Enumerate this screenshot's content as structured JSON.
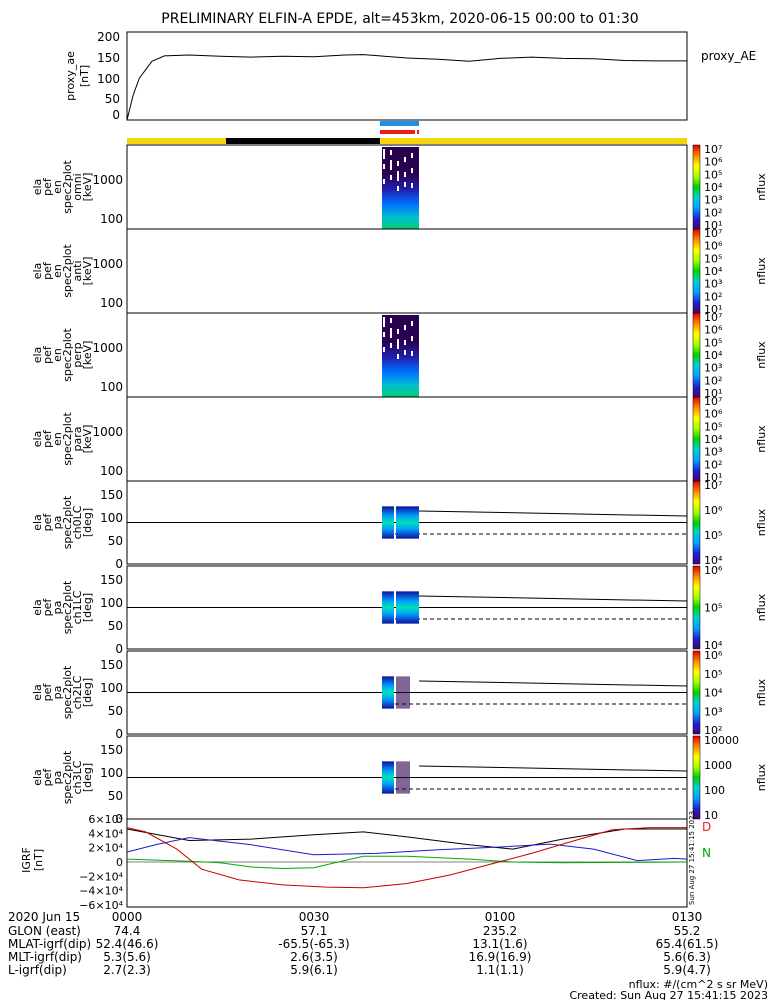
{
  "title": "PRELIMINARY ELFIN-A EPDE, alt=453km, 2020-06-15 00:00 to 01:30",
  "colors": {
    "background": "#ffffff",
    "sector_bar": "#f5d60a",
    "sector_dark": "#000000",
    "fgm_blue": "#1f8ee8",
    "fgm_red": "#e8201a",
    "bx": "#000000",
    "by": "#1a1acc",
    "bz": "#00aa00",
    "bmag": "#cc0000"
  },
  "chart_data": [
    {
      "type": "line",
      "id": "proxy_ae",
      "ylabel": [
        "proxy_ae",
        "[nT]"
      ],
      "legend": "proxy_AE",
      "ylim": [
        0,
        210
      ],
      "yticks": [
        "0",
        "50",
        "100",
        "150",
        "200"
      ],
      "series": [
        {
          "name": "proxy_AE",
          "x": [
            0,
            1,
            2,
            4,
            6,
            10,
            15,
            20,
            25,
            30,
            35,
            38,
            45,
            50,
            55,
            60,
            65,
            70,
            75,
            80,
            85,
            90
          ],
          "values": [
            0,
            60,
            100,
            140,
            153,
            155,
            152,
            150,
            152,
            151,
            155,
            156,
            148,
            145,
            140,
            147,
            150,
            147,
            146,
            142,
            141,
            141
          ]
        }
      ]
    },
    {
      "type": "heatmap",
      "id": "spec_omni",
      "ylabel": [
        "ela",
        "pef",
        "en",
        "spec2plot",
        "omni",
        "[keV]"
      ],
      "yticks": [
        "100",
        "1000"
      ],
      "colorbar": {
        "ticks": [
          "10¹",
          "10²",
          "10³",
          "10⁴",
          "10⁵",
          "10⁶",
          "10⁷"
        ],
        "label": "nflux"
      }
    },
    {
      "type": "heatmap",
      "id": "spec_anti",
      "ylabel": [
        "ela",
        "pef",
        "en",
        "spec2plot",
        "anti",
        "[keV]"
      ],
      "yticks": [
        "100",
        "1000"
      ],
      "colorbar": {
        "ticks": [
          "10¹",
          "10²",
          "10³",
          "10⁴",
          "10⁵",
          "10⁶",
          "10⁷"
        ],
        "label": "nflux"
      }
    },
    {
      "type": "heatmap",
      "id": "spec_perp",
      "ylabel": [
        "ela",
        "pef",
        "en",
        "spec2plot",
        "perp",
        "[keV]"
      ],
      "yticks": [
        "100",
        "1000"
      ],
      "colorbar": {
        "ticks": [
          "10¹",
          "10²",
          "10³",
          "10⁴",
          "10⁵",
          "10⁶",
          "10⁷"
        ],
        "label": "nflux"
      }
    },
    {
      "type": "heatmap",
      "id": "spec_para",
      "ylabel": [
        "ela",
        "pef",
        "en",
        "spec2plot",
        "para",
        "[keV]"
      ],
      "yticks": [
        "100",
        "1000"
      ],
      "colorbar": {
        "ticks": [
          "10¹",
          "10²",
          "10³",
          "10⁴",
          "10⁵",
          "10⁶",
          "10⁷"
        ],
        "label": "nflux"
      }
    },
    {
      "type": "heatmap",
      "id": "pa_ch0",
      "ylabel": [
        "ela",
        "pef",
        "pa",
        "spec2plot",
        "ch0LC",
        "[deg]"
      ],
      "yticks": [
        "0",
        "50",
        "100",
        "150"
      ],
      "colorbar": {
        "ticks": [
          "10⁴",
          "10⁵",
          "10⁶",
          "10⁷"
        ],
        "label": "nflux"
      }
    },
    {
      "type": "heatmap",
      "id": "pa_ch1",
      "ylabel": [
        "ela",
        "pef",
        "pa",
        "spec2plot",
        "ch1LC",
        "[deg]"
      ],
      "yticks": [
        "0",
        "50",
        "100",
        "150"
      ],
      "colorbar": {
        "ticks": [
          "10⁴",
          "10⁵",
          "10⁶"
        ],
        "label": "nflux"
      }
    },
    {
      "type": "heatmap",
      "id": "pa_ch2",
      "ylabel": [
        "ela",
        "pef",
        "pa",
        "spec2plot",
        "ch2LC",
        "[deg]"
      ],
      "yticks": [
        "0",
        "50",
        "100",
        "150"
      ],
      "colorbar": {
        "ticks": [
          "10²",
          "10³",
          "10⁴",
          "10⁵",
          "10⁶"
        ],
        "label": "nflux"
      }
    },
    {
      "type": "heatmap",
      "id": "pa_ch3",
      "ylabel": [
        "ela",
        "pef",
        "pa",
        "spec2plot",
        "ch3LC",
        "[deg]"
      ],
      "yticks": [
        "0",
        "50",
        "100",
        "150"
      ],
      "colorbar": {
        "ticks": [
          "10",
          "100",
          "1000",
          "10000"
        ],
        "label": "nflux"
      }
    },
    {
      "type": "line",
      "id": "igrf",
      "ylabel": [
        "IGRF",
        "[nT]"
      ],
      "ylim": [
        -60000,
        60000
      ],
      "yticks": [
        "−6×10⁴",
        "−4×10⁴",
        "−2×10⁴",
        "0",
        "2×10⁴",
        "4×10⁴",
        "6×10⁴"
      ],
      "legend_marks": [
        "D",
        "N"
      ],
      "series": [
        {
          "x": [
            0,
            5,
            10,
            20,
            30,
            38,
            45,
            55,
            62,
            70,
            80,
            90
          ],
          "values": [
            46000,
            38000,
            30000,
            32000,
            38000,
            42000,
            35000,
            24000,
            18000,
            32000,
            46000,
            46000
          ]
        },
        {
          "x": [
            0,
            5,
            10,
            20,
            30,
            40,
            50,
            60,
            68,
            75,
            82,
            88,
            90
          ],
          "values": [
            14000,
            25000,
            34000,
            24000,
            10000,
            12000,
            17000,
            21000,
            25000,
            18000,
            2000,
            5000,
            4000
          ]
        },
        {
          "x": [
            0,
            10,
            15,
            20,
            25,
            30,
            33,
            38,
            45,
            55,
            62,
            70,
            80,
            90
          ],
          "values": [
            4000,
            1000,
            -1000,
            -7000,
            -9000,
            -8000,
            -2000,
            8000,
            8000,
            4000,
            0,
            -1000,
            -500,
            0
          ]
        },
        {
          "x": [
            0,
            3,
            8,
            12,
            18,
            25,
            32,
            38,
            45,
            52,
            58,
            65,
            72,
            78,
            84,
            90
          ],
          "values": [
            48000,
            42000,
            18000,
            -10000,
            -25000,
            -32000,
            -35000,
            -36000,
            -30000,
            -18000,
            -4000,
            12000,
            30000,
            45000,
            48000,
            48000
          ]
        }
      ]
    }
  ],
  "time_axis": {
    "ticks": [
      "0000",
      "0030",
      "0100",
      "0130"
    ],
    "date_label": "2020 Jun 15"
  },
  "ephemeris": [
    {
      "label": "GLON (east)",
      "values": [
        "74.4",
        "57.1",
        "235.2",
        "55.2"
      ]
    },
    {
      "label": "MLAT-igrf(dip)",
      "values": [
        "52.4(46.6)",
        "-65.5(-65.3)",
        "13.1(1.6)",
        "65.4(61.5)"
      ]
    },
    {
      "label": "MLT-igrf(dip)",
      "values": [
        "5.3(5.6)",
        "2.6(3.5)",
        "16.9(16.9)",
        "5.6(6.3)"
      ]
    },
    {
      "label": "L-igrf(dip)",
      "values": [
        "2.7(2.3)",
        "5.9(6.1)",
        "1.1(1.1)",
        "5.9(4.7)"
      ]
    }
  ],
  "stamp": "Sun Aug 27 15:41:15 2023",
  "footer": {
    "units": "nflux: #/(cm^2 s sr MeV)",
    "created": "Created: Sun Aug 27 15:41:15 2023"
  }
}
